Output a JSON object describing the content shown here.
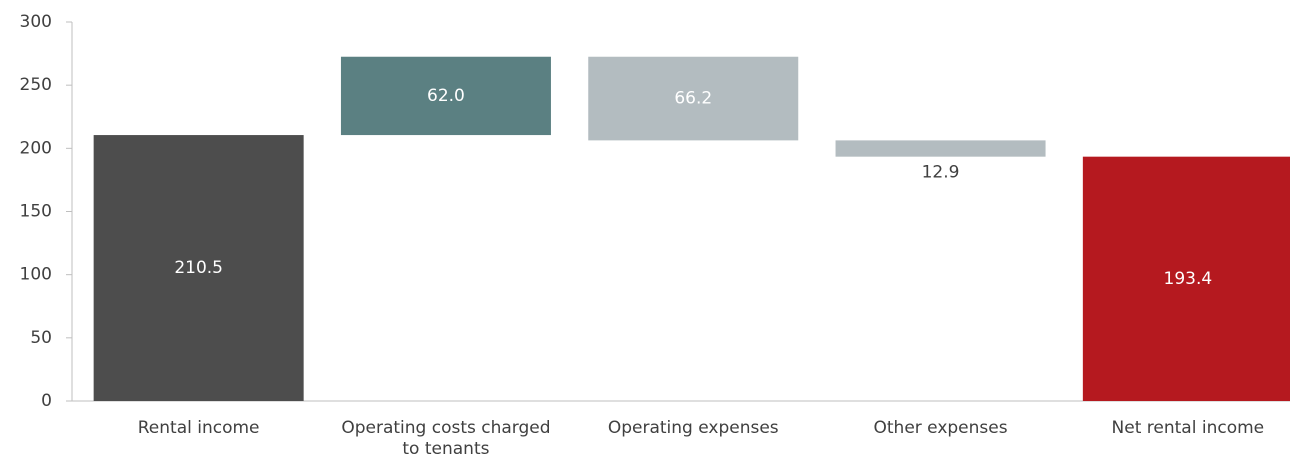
{
  "chart_data": {
    "type": "waterfall",
    "categories": [
      "Rental income",
      "Operating costs charged to tenants",
      "Operating expenses",
      "Other expenses",
      "Net rental income"
    ],
    "values": [
      210.5,
      62.0,
      -66.2,
      -12.9,
      193.4
    ],
    "value_labels": [
      "210.5",
      "62.0",
      "66.2",
      "12.9",
      "193.4"
    ],
    "totals": [
      true,
      false,
      false,
      false,
      true
    ],
    "colors": [
      "#4d4d4d",
      "#5b8082",
      "#b3bcc0",
      "#b3bcc0",
      "#b5191f"
    ],
    "ylim": [
      0,
      300
    ],
    "yticks": [
      0,
      50,
      100,
      150,
      200,
      250,
      300
    ],
    "grid": false
  }
}
